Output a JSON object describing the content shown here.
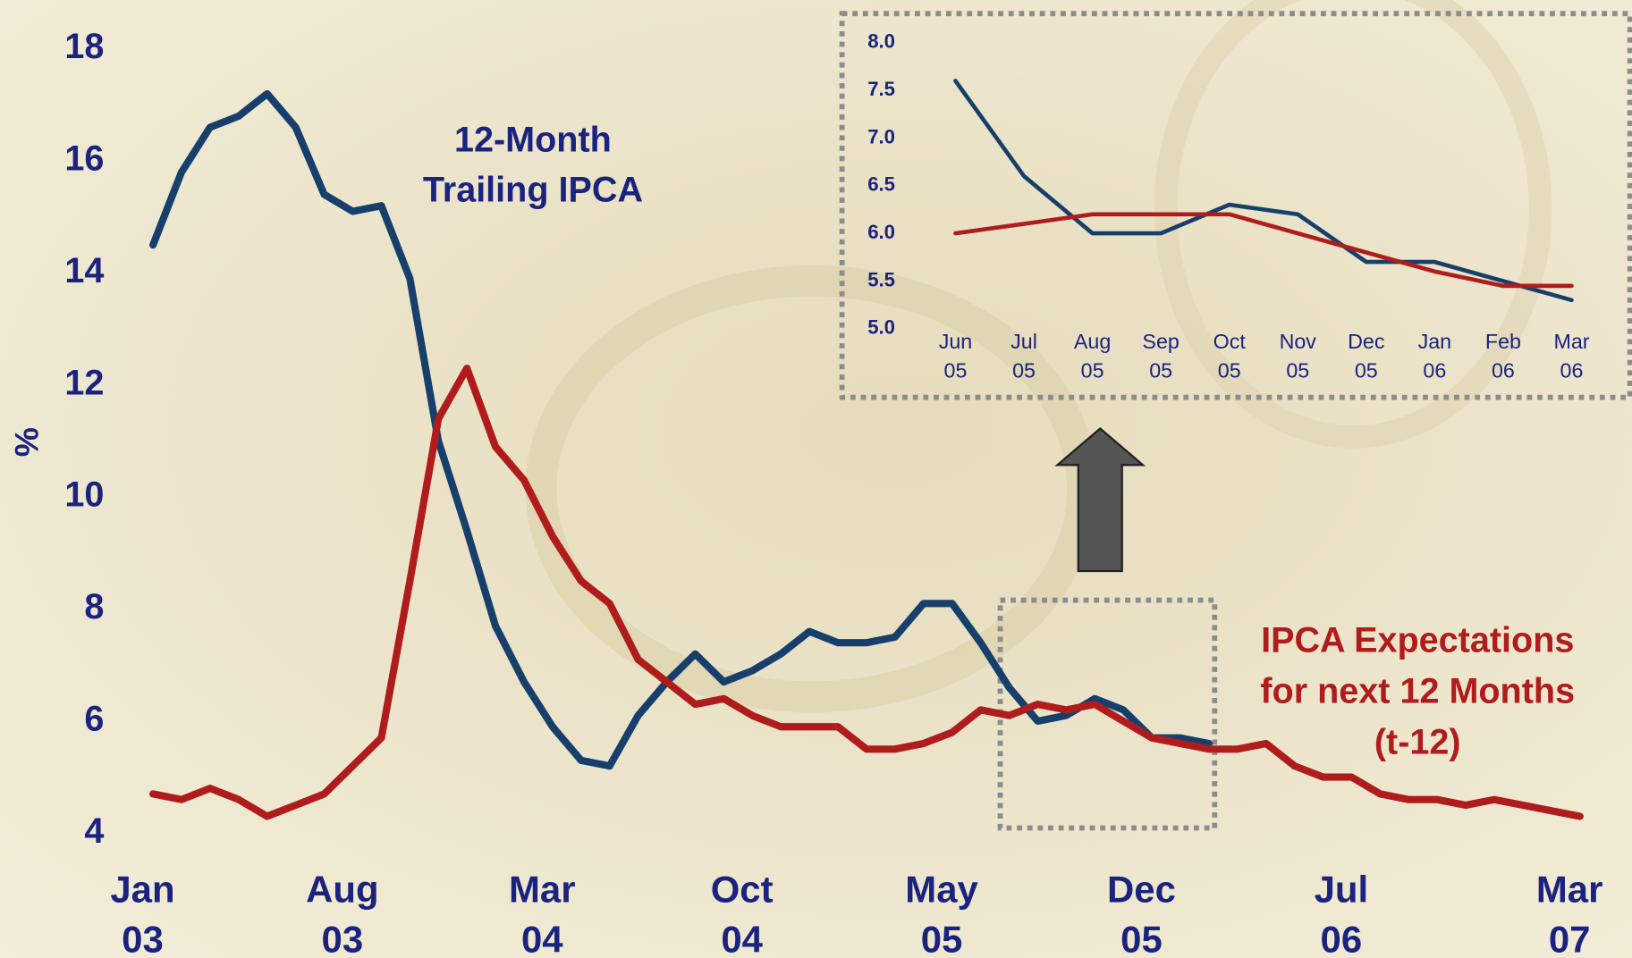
{
  "chart_data": [
    {
      "type": "line",
      "y_label": "%",
      "categories": [
        "Jan\n03",
        null,
        null,
        null,
        null,
        null,
        null,
        "Aug\n03",
        null,
        null,
        null,
        null,
        null,
        null,
        "Mar\n04",
        null,
        null,
        null,
        null,
        null,
        null,
        "Oct\n04",
        null,
        null,
        null,
        null,
        null,
        null,
        "May\n05",
        null,
        null,
        null,
        null,
        null,
        null,
        "Dec\n05",
        null,
        null,
        null,
        null,
        null,
        null,
        "Jul\n06",
        null,
        null,
        null,
        null,
        null,
        null,
        null,
        "Mar\n07"
      ],
      "ylim": [
        4,
        18
      ],
      "yticks": [
        4,
        6,
        8,
        10,
        12,
        14,
        16,
        18
      ],
      "series": [
        {
          "name": "12-Month\nTrailing IPCA",
          "color": "#173f6b",
          "values": [
            14.5,
            15.8,
            16.6,
            16.8,
            17.2,
            16.6,
            15.4,
            15.1,
            15.2,
            13.9,
            11.0,
            9.4,
            7.7,
            6.7,
            5.9,
            5.3,
            5.2,
            6.1,
            6.7,
            7.2,
            6.7,
            6.9,
            7.2,
            7.6,
            7.4,
            7.4,
            7.5,
            8.1,
            8.1,
            7.4,
            6.6,
            6.0,
            6.1,
            6.4,
            6.2,
            5.7,
            5.7,
            5.6,
            null,
            null,
            null,
            null,
            null,
            null,
            null,
            null,
            null,
            null,
            null,
            null,
            null
          ]
        },
        {
          "name": "IPCA Expectations\nfor next 12 Months\n(t-12)",
          "color": "#b01c1c",
          "values": [
            4.7,
            4.6,
            4.8,
            4.6,
            4.3,
            4.5,
            4.7,
            5.2,
            5.7,
            8.5,
            11.4,
            12.3,
            10.9,
            10.3,
            9.3,
            8.5,
            8.1,
            7.1,
            6.7,
            6.3,
            6.4,
            6.1,
            5.9,
            5.9,
            5.9,
            5.5,
            5.5,
            5.6,
            5.8,
            6.2,
            6.1,
            6.3,
            6.2,
            6.3,
            6.0,
            5.7,
            5.6,
            5.5,
            5.5,
            5.6,
            5.2,
            5.0,
            5.0,
            4.7,
            4.6,
            4.6,
            4.5,
            4.6,
            4.5,
            4.4,
            4.3
          ]
        }
      ]
    },
    {
      "type": "line",
      "categories": [
        "Jun\n05",
        "Jul\n05",
        "Aug\n05",
        "Sep\n05",
        "Oct\n05",
        "Nov\n05",
        "Dec\n05",
        "Jan\n06",
        "Feb\n06",
        "Mar\n06"
      ],
      "ylim": [
        5,
        8
      ],
      "yticks": [
        {
          "value": 5,
          "label": "5.0"
        },
        5.5,
        {
          "value": 6,
          "label": "6.0"
        },
        6.5,
        {
          "value": 7,
          "label": "7.0"
        },
        7.5,
        {
          "value": 8,
          "label": "8.0"
        }
      ],
      "series": [
        {
          "color": "#173f6b",
          "values": [
            7.6,
            6.6,
            6.0,
            6.0,
            6.3,
            6.2,
            5.7,
            5.7,
            5.5,
            5.3
          ]
        },
        {
          "color": "#b01c1c",
          "values": [
            6.0,
            6.1,
            6.2,
            6.2,
            6.2,
            6.0,
            5.8,
            5.6,
            5.45,
            5.45
          ]
        }
      ]
    }
  ]
}
